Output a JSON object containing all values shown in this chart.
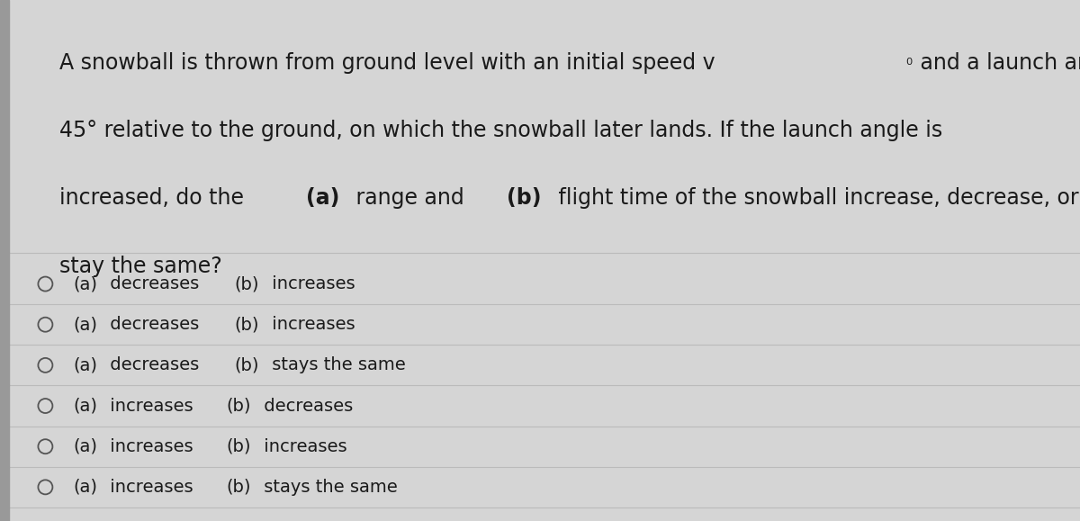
{
  "background_color": "#d5d5d5",
  "content_background": "#e5e5e5",
  "question_lines": [
    {
      "segments": [
        {
          "text": "A snowball is thrown from ground level with an initial speed v",
          "bold": false
        },
        {
          "text": "₀",
          "bold": false,
          "small": true
        },
        {
          "text": " and a launch angle of",
          "bold": false
        }
      ]
    },
    {
      "segments": [
        {
          "text": "45° relative to the ground, on which the snowball later lands. If the launch angle is",
          "bold": false
        }
      ]
    },
    {
      "segments": [
        {
          "text": "increased, do the ",
          "bold": false
        },
        {
          "text": "(a)",
          "bold": true
        },
        {
          "text": " range and ",
          "bold": false
        },
        {
          "text": "(b)",
          "bold": true
        },
        {
          "text": " flight time of the snowball increase, decrease, or",
          "bold": false
        }
      ]
    },
    {
      "segments": [
        {
          "text": "stay the same?",
          "bold": false
        }
      ]
    }
  ],
  "options": [
    {
      "segments": [
        {
          "text": "(a)",
          "bold": false
        },
        {
          "text": " decreases ",
          "bold": false
        },
        {
          "text": "(b)",
          "bold": false
        },
        {
          "text": " increases",
          "bold": false
        }
      ]
    },
    {
      "segments": [
        {
          "text": "(a)",
          "bold": false
        },
        {
          "text": " decreases ",
          "bold": false
        },
        {
          "text": "(b)",
          "bold": false
        },
        {
          "text": " increases",
          "bold": false
        }
      ]
    },
    {
      "segments": [
        {
          "text": "(a)",
          "bold": false
        },
        {
          "text": " decreases ",
          "bold": false
        },
        {
          "text": "(b)",
          "bold": false
        },
        {
          "text": " stays the same",
          "bold": false
        }
      ]
    },
    {
      "segments": [
        {
          "text": "(a)",
          "bold": false
        },
        {
          "text": " increases ",
          "bold": false
        },
        {
          "text": "(b)",
          "bold": false
        },
        {
          "text": " decreases",
          "bold": false
        }
      ]
    },
    {
      "segments": [
        {
          "text": "(a)",
          "bold": false
        },
        {
          "text": " increases ",
          "bold": false
        },
        {
          "text": "(b)",
          "bold": false
        },
        {
          "text": " increases",
          "bold": false
        }
      ]
    },
    {
      "segments": [
        {
          "text": "(a)",
          "bold": false
        },
        {
          "text": " increases ",
          "bold": false
        },
        {
          "text": "(b)",
          "bold": false
        },
        {
          "text": " stays the same",
          "bold": false
        }
      ]
    }
  ],
  "text_color": "#1a1a1a",
  "divider_color": "#bbbbbb",
  "circle_color": "#555555",
  "figsize": [
    12.0,
    5.79
  ],
  "dpi": 100,
  "left_bar_color": "#999999",
  "question_fontsize": 17,
  "option_fontsize": 14
}
